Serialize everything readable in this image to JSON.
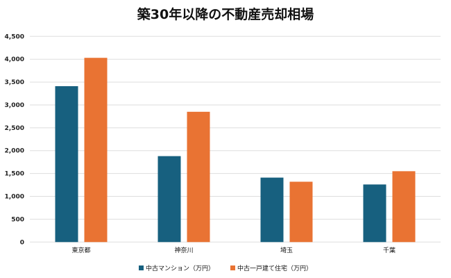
{
  "chart_data": {
    "type": "bar",
    "title": "築30年以降の不動産売却相場",
    "categories": [
      "東京都",
      "神奈川",
      "埼玉",
      "千葉"
    ],
    "series": [
      {
        "name": "中古マンション（万円）",
        "color": "#17607f",
        "values": [
          3410,
          1880,
          1410,
          1260
        ]
      },
      {
        "name": "中古一戸建て住宅（万円）",
        "color": "#e97333",
        "values": [
          4030,
          2850,
          1320,
          1550
        ]
      }
    ],
    "yticks": [
      "0",
      "500",
      "1,000",
      "1,500",
      "2,000",
      "2,500",
      "3,000",
      "3,500",
      "4,000",
      "4,500"
    ],
    "ylim": [
      0,
      4500
    ],
    "grid": true,
    "legend": "bottom"
  }
}
